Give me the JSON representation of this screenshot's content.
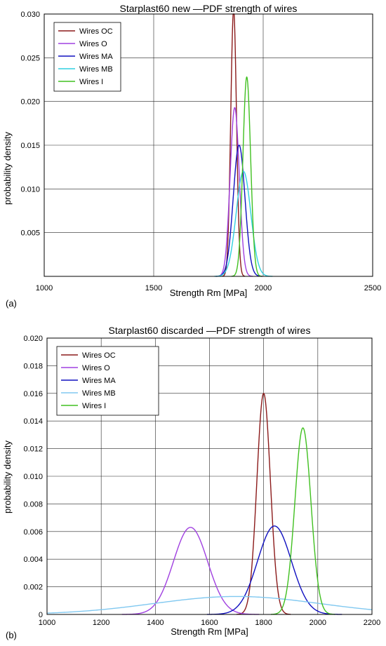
{
  "chart_data": [
    {
      "panel_label": "(a)",
      "type": "line",
      "title": "Starplast60 new —PDF strength of wires",
      "xlabel": "Strength Rm [MPa]",
      "ylabel": "probability density",
      "xlim": [
        1000,
        2500
      ],
      "ylim": [
        0,
        0.03
      ],
      "xticks": [
        1000,
        1500,
        2000,
        2500
      ],
      "xtick_labels": [
        "1000",
        "1500",
        "2000",
        "2500"
      ],
      "yticks": [
        0.005,
        0.01,
        0.015,
        0.02,
        0.025,
        0.03
      ],
      "ytick_labels": [
        "0.005",
        "0.010",
        "0.015",
        "0.020",
        "0.025",
        "0.030"
      ],
      "grid": true,
      "legend_position": "top-left",
      "series": [
        {
          "name": "Wires OC",
          "color": "#8B1A1A",
          "mean": 1865,
          "peak": 0.0305
        },
        {
          "name": "Wires O",
          "color": "#A040E0",
          "mean": 1870,
          "peak": 0.0193
        },
        {
          "name": "Wires MA",
          "color": "#1010C0",
          "mean": 1890,
          "peak": 0.015
        },
        {
          "name": "Wires MB",
          "color": "#30D0E0",
          "mean": 1910,
          "peak": 0.012
        },
        {
          "name": "Wires I",
          "color": "#40C020",
          "mean": 1925,
          "peak": 0.0228
        }
      ]
    },
    {
      "panel_label": "(b)",
      "type": "line",
      "title": "Starplast60 discarded —PDF strength of wires",
      "xlabel": "Strength Rm [MPa]",
      "ylabel": "probability density",
      "xlim": [
        1000,
        2200
      ],
      "ylim": [
        0,
        0.02
      ],
      "xticks": [
        1000,
        1200,
        1400,
        1600,
        1800,
        2000,
        2200
      ],
      "xtick_labels": [
        "1000",
        "1200",
        "1400",
        "1600",
        "1800",
        "2000",
        "2200"
      ],
      "yticks": [
        0,
        0.002,
        0.004,
        0.006,
        0.008,
        0.01,
        0.012,
        0.014,
        0.016,
        0.018,
        0.02
      ],
      "ytick_labels": [
        "0",
        "0.002",
        "0.004",
        "0.006",
        "0.008",
        "0.010",
        "0.012",
        "0.014",
        "0.016",
        "0.018",
        "0.020"
      ],
      "grid": true,
      "legend_position": "top-left",
      "series": [
        {
          "name": "Wires OC",
          "color": "#8B1A1A",
          "mean": 1800,
          "peak": 0.016
        },
        {
          "name": "Wires O",
          "color": "#A040E0",
          "mean": 1530,
          "peak": 0.0063
        },
        {
          "name": "Wires MA",
          "color": "#1010C0",
          "mean": 1840,
          "peak": 0.0064
        },
        {
          "name": "Wires MB",
          "color": "#80C8F0",
          "mean": 1700,
          "peak": 0.0013
        },
        {
          "name": "Wires I",
          "color": "#40C020",
          "mean": 1945,
          "peak": 0.0135
        }
      ]
    }
  ]
}
